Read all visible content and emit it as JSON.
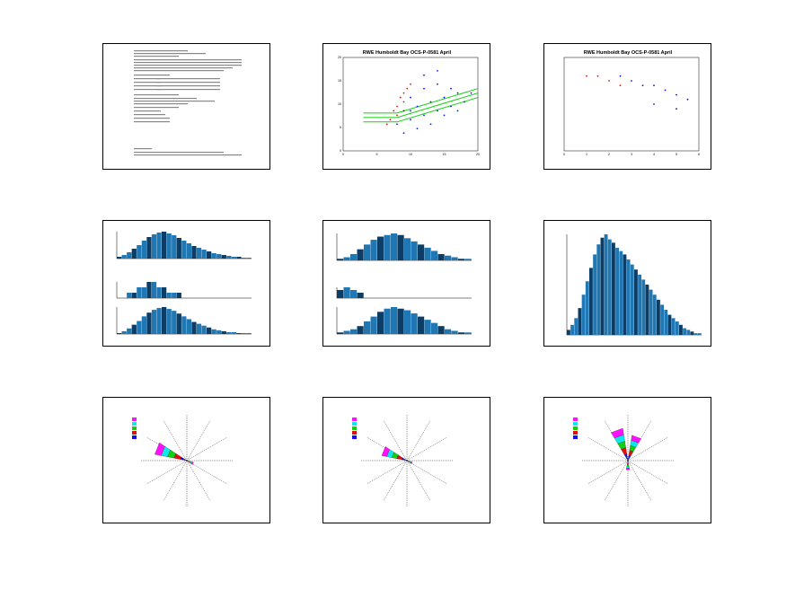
{
  "page": {
    "layout": "3x3 grid of chart thumbnails"
  },
  "colors": {
    "blue": "#1010ee",
    "red": "#e01010",
    "green": "#10d010",
    "bar": "#1f77b4",
    "bar_dark": "#0b3d66",
    "magenta": "#ff10ff",
    "cyan": "#10e8e8"
  },
  "panels": {
    "p2": {
      "title": "RWE Humboldt Bay OCS-P-0581 April"
    },
    "p3": {
      "title": "RWE Humboldt Bay OCS-P-0581 April"
    }
  },
  "chart_data": [
    {
      "type": "table",
      "name": "text summary page"
    },
    {
      "type": "scatter",
      "title": "RWE Humboldt Bay OCS-P-0581 April",
      "xlim": [
        0,
        20
      ],
      "ylim": [
        0,
        21
      ],
      "xticks": [
        "0",
        "5",
        "10",
        "15",
        "20"
      ],
      "yticks": [
        "0",
        "5",
        "10",
        "15",
        "20"
      ],
      "series": [
        {
          "color": "blue",
          "points": [
            [
              8,
              6
            ],
            [
              9,
              9
            ],
            [
              10,
              7
            ],
            [
              11,
              10
            ],
            [
              12,
              8
            ],
            [
              13,
              11
            ],
            [
              14,
              9
            ],
            [
              15,
              12
            ],
            [
              16,
              10
            ],
            [
              17,
              13
            ],
            [
              12,
              14
            ],
            [
              14,
              15
            ],
            [
              10,
              12
            ],
            [
              13,
              6
            ],
            [
              15,
              8
            ],
            [
              16,
              14
            ],
            [
              18,
              11
            ],
            [
              11,
              5
            ],
            [
              9,
              4
            ],
            [
              17,
              9
            ],
            [
              14,
              18
            ],
            [
              12,
              17
            ],
            [
              19,
              13
            ],
            [
              10,
              9
            ]
          ]
        },
        {
          "color": "red",
          "points": [
            [
              7,
              7
            ],
            [
              7.5,
              9
            ],
            [
              8,
              10
            ],
            [
              8.5,
              12
            ],
            [
              9,
              13
            ],
            [
              9.5,
              14
            ],
            [
              10,
              15
            ],
            [
              6.5,
              6
            ],
            [
              8,
              8
            ],
            [
              9,
              11
            ]
          ]
        }
      ],
      "fit_lines": [
        {
          "color": "green",
          "points": [
            [
              3,
              6.5
            ],
            [
              8,
              6.5
            ],
            [
              20,
              12
            ]
          ]
        },
        {
          "color": "green",
          "points": [
            [
              3,
              7.5
            ],
            [
              8,
              7.5
            ],
            [
              20,
              13
            ]
          ]
        },
        {
          "color": "green",
          "points": [
            [
              3,
              8.5
            ],
            [
              8,
              8.5
            ],
            [
              20,
              14
            ]
          ]
        }
      ]
    },
    {
      "type": "scatter",
      "title": "RWE Humboldt Bay OCS-P-0581 April",
      "xlim": [
        0,
        6
      ],
      "xticks": [
        "0",
        "1",
        "2",
        "3",
        "4",
        "5",
        "6"
      ],
      "series": [
        {
          "color": "red",
          "points": [
            [
              1,
              8
            ],
            [
              1.5,
              8
            ],
            [
              2,
              7.5
            ],
            [
              2.5,
              7
            ]
          ]
        },
        {
          "color": "blue",
          "points": [
            [
              2.5,
              8
            ],
            [
              3,
              7.5
            ],
            [
              3.5,
              7
            ],
            [
              4,
              7
            ],
            [
              4.5,
              6.5
            ],
            [
              5,
              6
            ],
            [
              5.5,
              5.5
            ],
            [
              4,
              5
            ],
            [
              5,
              4.5
            ]
          ]
        }
      ]
    },
    {
      "type": "bar",
      "subplots": [
        {
          "values": [
            2,
            4,
            7,
            11,
            15,
            20,
            24,
            27,
            29,
            30,
            28,
            26,
            23,
            20,
            17,
            14,
            12,
            10,
            8,
            6,
            5,
            4,
            3,
            2,
            2,
            1,
            1
          ]
        },
        {
          "values": [
            0,
            0,
            1,
            1,
            2,
            2,
            3,
            3,
            2,
            2,
            1,
            1,
            1,
            0,
            0,
            0,
            0,
            0,
            0,
            0,
            0,
            0,
            0,
            0,
            0,
            0,
            0
          ]
        },
        {
          "values": [
            1,
            3,
            6,
            10,
            14,
            19,
            23,
            26,
            28,
            29,
            27,
            25,
            22,
            19,
            16,
            13,
            11,
            9,
            7,
            5,
            4,
            3,
            2,
            2,
            1,
            1,
            1
          ]
        }
      ]
    },
    {
      "type": "bar",
      "subplots": [
        {
          "values": [
            1,
            2,
            4,
            7,
            10,
            13,
            15,
            16,
            17,
            16,
            14,
            12,
            10,
            8,
            6,
            4,
            3,
            2,
            1,
            1
          ]
        },
        {
          "values": [
            3,
            4,
            3,
            2,
            0,
            0,
            0,
            0,
            0,
            0,
            0,
            0,
            0,
            0,
            0,
            0,
            0,
            0,
            0,
            0
          ]
        },
        {
          "values": [
            1,
            2,
            3,
            5,
            8,
            11,
            14,
            16,
            17,
            16,
            15,
            13,
            11,
            9,
            7,
            5,
            3,
            2,
            1,
            1
          ]
        }
      ]
    },
    {
      "type": "bar",
      "values": [
        3,
        6,
        10,
        16,
        24,
        32,
        40,
        48,
        54,
        58,
        60,
        57,
        55,
        52,
        50,
        48,
        45,
        42,
        39,
        36,
        33,
        30,
        27,
        24,
        21,
        18,
        15,
        12,
        10,
        8,
        6,
        4,
        3,
        2,
        1,
        1
      ]
    },
    {
      "type": "pie",
      "name": "wind rose 1",
      "sectors": [
        {
          "dir_deg": 292,
          "length": 0.7
        },
        {
          "dir_deg": 115,
          "length": 0.15
        }
      ]
    },
    {
      "type": "pie",
      "name": "wind rose 2",
      "sectors": [
        {
          "dir_deg": 292,
          "length": 0.55
        },
        {
          "dir_deg": 115,
          "length": 0.12
        }
      ]
    },
    {
      "type": "pie",
      "name": "wind rose 3",
      "sectors": [
        {
          "dir_deg": 340,
          "length": 0.7
        },
        {
          "dir_deg": 20,
          "length": 0.55
        },
        {
          "dir_deg": 180,
          "length": 0.2
        }
      ]
    }
  ]
}
